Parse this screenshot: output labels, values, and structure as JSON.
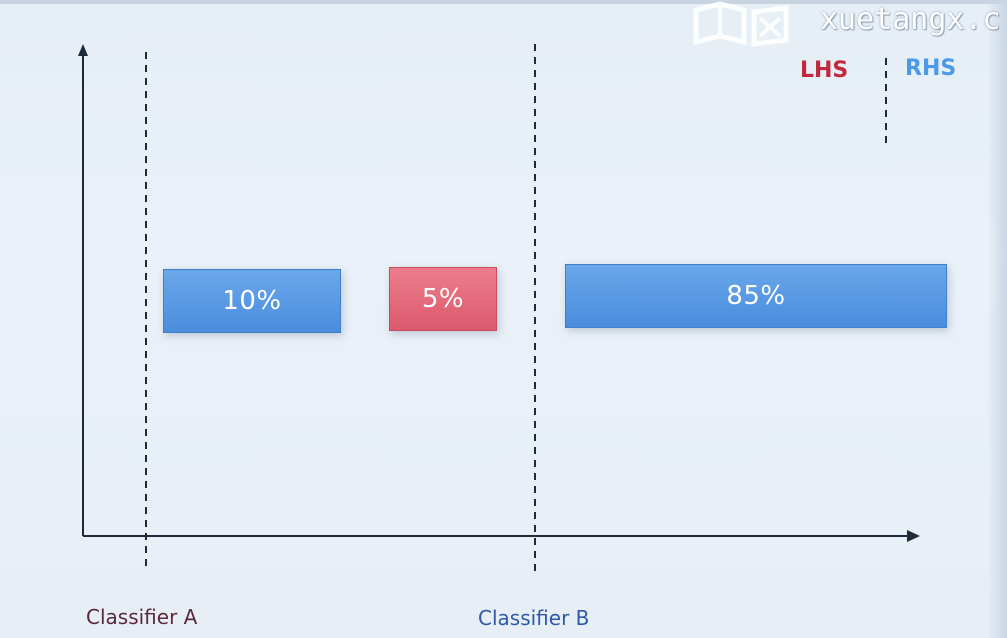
{
  "legend": {
    "lhs_label": "LHS",
    "rhs_label": "RHS"
  },
  "bars": [
    {
      "label": "10%",
      "value": 10,
      "side": "RHS",
      "color": "#4a8ddd"
    },
    {
      "label": "5%",
      "value": 5,
      "side": "LHS",
      "color": "#dc5a6d"
    },
    {
      "label": "85%",
      "value": 85,
      "side": "RHS",
      "color": "#4a8ddd"
    }
  ],
  "thresholds": {
    "classifier_a": "Classifier A",
    "classifier_b": "Classifier B"
  },
  "watermark": {
    "text": "xuetangx.c",
    "icon": "xuetangx-logo-icon"
  },
  "colors": {
    "lhs": "#c0283e",
    "rhs": "#4b9ae6",
    "background": "#eaf1f8"
  }
}
